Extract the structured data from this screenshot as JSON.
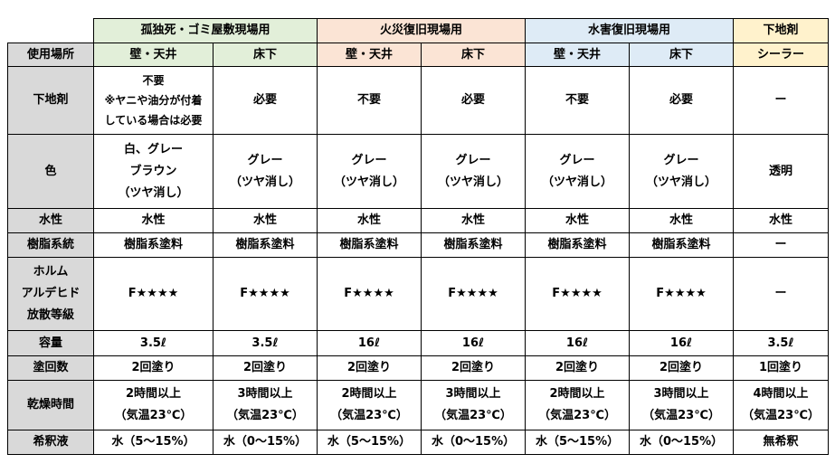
{
  "header": {
    "groups": [
      {
        "label": "孤独死・ゴミ屋敷現場用",
        "span": 2,
        "color": "#e2efd9"
      },
      {
        "label": "火災復旧現場用",
        "span": 2,
        "color": "#fbe4d5"
      },
      {
        "label": "水害復旧現場用",
        "span": 2,
        "color": "#deebf6"
      },
      {
        "label": "下地剤",
        "span": 1,
        "color": "#fff2cc"
      }
    ],
    "row_label": "使用場所",
    "subs": [
      "壁・天井",
      "床下",
      "壁・天井",
      "床下",
      "壁・天井",
      "床下",
      "シーラー"
    ]
  },
  "table": {
    "rows": [
      {
        "label": "下地剤",
        "cells": [
          "不要\n※ヤニや油分が付着\nしている場合は必要",
          "必要",
          "不要",
          "必要",
          "不要",
          "必要",
          "ー"
        ]
      },
      {
        "label": "色",
        "cells": [
          "白、グレー\nブラウン\n（ツヤ消し）",
          "グレー\n（ツヤ消し）",
          "グレー\n（ツヤ消し）",
          "グレー\n（ツヤ消し）",
          "グレー\n（ツヤ消し）",
          "グレー\n（ツヤ消し）",
          "透明"
        ]
      },
      {
        "label": "水性",
        "cells": [
          "水性",
          "水性",
          "水性",
          "水性",
          "水性",
          "水性",
          "水性"
        ]
      },
      {
        "label": "樹脂系統",
        "cells": [
          "樹脂系塗料",
          "樹脂系塗料",
          "樹脂系塗料",
          "樹脂系塗料",
          "樹脂系塗料",
          "樹脂系塗料",
          "ー"
        ]
      },
      {
        "label": "ホルム\nアルデヒド\n放散等級",
        "cells": [
          "F★★★★",
          "F★★★★",
          "F★★★★",
          "F★★★★",
          "F★★★★",
          "F★★★★",
          "ー"
        ]
      },
      {
        "label": "容量",
        "cells": [
          "3.5ℓ",
          "3.5ℓ",
          "16ℓ",
          "16ℓ",
          "16ℓ",
          "16ℓ",
          "3.5ℓ"
        ]
      },
      {
        "label": "塗回数",
        "cells": [
          "2回塗り",
          "2回塗り",
          "2回塗り",
          "2回塗り",
          "2回塗り",
          "2回塗り",
          "1回塗り"
        ]
      },
      {
        "label": "乾燥時間",
        "cells": [
          "2時間以上\n（気温23℃）",
          "3時間以上\n（気温23℃）",
          "2時間以上\n（気温23℃）",
          "3時間以上\n（気温23℃）",
          "2時間以上\n（気温23℃）",
          "3時間以上\n（気温23℃）",
          "4時間以上\n（気温23℃）"
        ]
      },
      {
        "label": "希釈液",
        "cells": [
          "水（5～15%）",
          "水（0～15%）",
          "水（5～15%）",
          "水（0～15%）",
          "水（5～15%）",
          "水（0～15%）",
          "無希釈"
        ]
      }
    ]
  }
}
